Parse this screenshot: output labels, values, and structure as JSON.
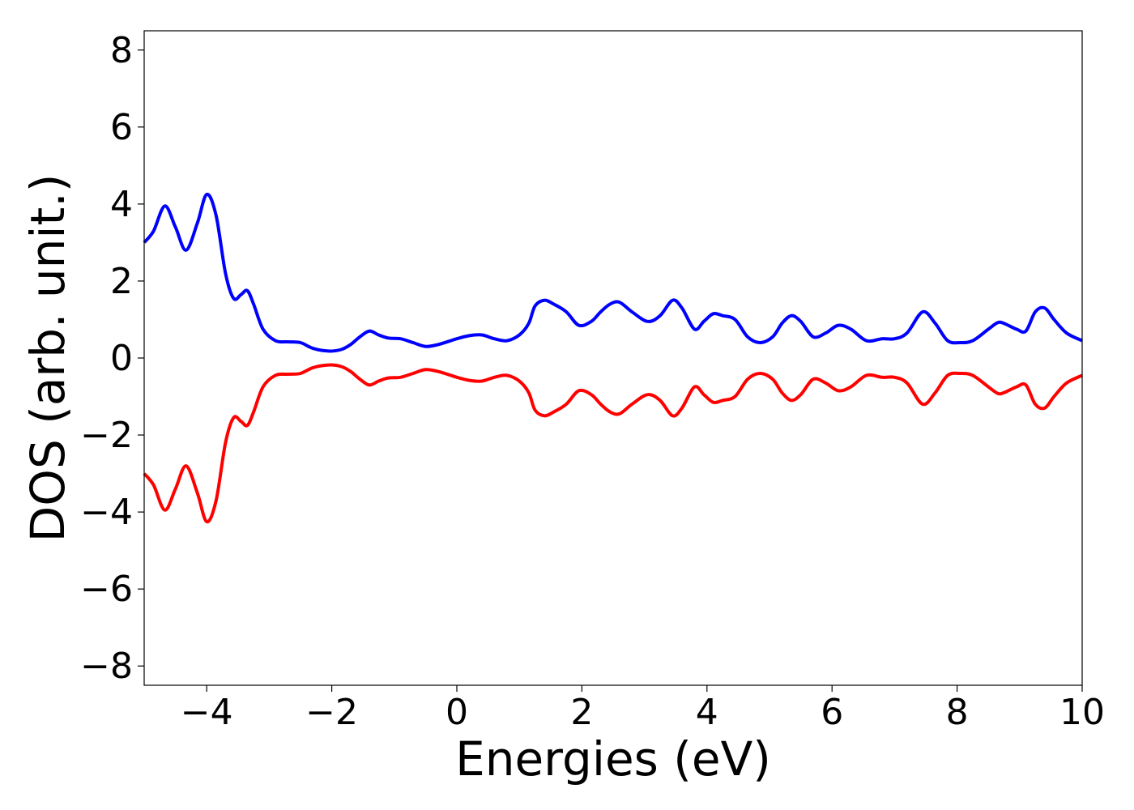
{
  "chart_data": {
    "type": "line",
    "title": "",
    "xlabel": "Energies (eV)",
    "ylabel": "DOS (arb. unit.)",
    "xlim": [
      -5,
      10
    ],
    "ylim": [
      -8.5,
      8.5
    ],
    "xticks": [
      -4,
      -2,
      0,
      2,
      4,
      6,
      8,
      10
    ],
    "yticks": [
      -8,
      -6,
      -4,
      -2,
      0,
      2,
      4,
      6,
      8
    ],
    "xtick_labels": [
      "−4",
      "−2",
      "0",
      "2",
      "4",
      "6",
      "8",
      "10"
    ],
    "ytick_labels": [
      "−8",
      "−6",
      "−4",
      "−2",
      "0",
      "2",
      "4",
      "6",
      "8"
    ],
    "grid": false,
    "legend": "none",
    "series": [
      {
        "color": "#0000ff",
        "x": [
          -5.0,
          -4.85,
          -4.67,
          -4.5,
          -4.33,
          -4.15,
          -4.0,
          -3.85,
          -3.7,
          -3.57,
          -3.45,
          -3.35,
          -3.25,
          -3.1,
          -2.9,
          -2.7,
          -2.5,
          -2.3,
          -2.05,
          -1.85,
          -1.7,
          -1.55,
          -1.4,
          -1.25,
          -1.1,
          -0.9,
          -0.7,
          -0.5,
          -0.3,
          0.0,
          0.2,
          0.4,
          0.6,
          0.8,
          1.0,
          1.15,
          1.25,
          1.4,
          1.55,
          1.75,
          1.95,
          2.15,
          2.3,
          2.45,
          2.6,
          2.8,
          3.05,
          3.25,
          3.45,
          3.6,
          3.8,
          3.95,
          4.1,
          4.25,
          4.45,
          4.65,
          4.85,
          5.05,
          5.2,
          5.35,
          5.5,
          5.7,
          5.9,
          6.1,
          6.3,
          6.55,
          6.8,
          7.0,
          7.2,
          7.45,
          7.65,
          7.85,
          8.05,
          8.25,
          8.5,
          8.65,
          8.75,
          8.95,
          9.1,
          9.25,
          9.4,
          9.55,
          9.75,
          10.0
        ],
        "y": [
          3.0,
          3.3,
          3.95,
          3.4,
          2.8,
          3.5,
          4.25,
          3.7,
          2.2,
          1.55,
          1.65,
          1.75,
          1.4,
          0.75,
          0.45,
          0.42,
          0.4,
          0.25,
          0.18,
          0.22,
          0.35,
          0.55,
          0.7,
          0.6,
          0.52,
          0.5,
          0.4,
          0.3,
          0.35,
          0.5,
          0.58,
          0.6,
          0.5,
          0.45,
          0.6,
          0.9,
          1.35,
          1.5,
          1.4,
          1.2,
          0.85,
          0.95,
          1.2,
          1.4,
          1.45,
          1.2,
          0.95,
          1.1,
          1.5,
          1.3,
          0.75,
          0.95,
          1.15,
          1.1,
          1.0,
          0.55,
          0.4,
          0.55,
          0.9,
          1.1,
          0.95,
          0.55,
          0.65,
          0.85,
          0.75,
          0.45,
          0.5,
          0.5,
          0.65,
          1.2,
          0.9,
          0.45,
          0.4,
          0.45,
          0.75,
          0.92,
          0.9,
          0.75,
          0.7,
          1.2,
          1.3,
          1.0,
          0.65,
          0.45
        ]
      },
      {
        "color": "#ff0000",
        "x": [
          -5.0,
          -4.85,
          -4.67,
          -4.5,
          -4.33,
          -4.15,
          -4.0,
          -3.85,
          -3.7,
          -3.57,
          -3.45,
          -3.35,
          -3.25,
          -3.1,
          -2.9,
          -2.7,
          -2.5,
          -2.3,
          -2.05,
          -1.85,
          -1.7,
          -1.55,
          -1.4,
          -1.25,
          -1.1,
          -0.9,
          -0.7,
          -0.5,
          -0.3,
          0.0,
          0.2,
          0.4,
          0.6,
          0.8,
          1.0,
          1.15,
          1.25,
          1.4,
          1.55,
          1.75,
          1.95,
          2.15,
          2.3,
          2.45,
          2.6,
          2.8,
          3.05,
          3.25,
          3.45,
          3.6,
          3.8,
          3.95,
          4.1,
          4.25,
          4.45,
          4.65,
          4.85,
          5.05,
          5.2,
          5.35,
          5.5,
          5.7,
          5.9,
          6.1,
          6.3,
          6.55,
          6.8,
          7.0,
          7.2,
          7.45,
          7.65,
          7.85,
          8.05,
          8.25,
          8.5,
          8.65,
          8.75,
          8.95,
          9.1,
          9.25,
          9.4,
          9.55,
          9.75,
          10.0
        ],
        "y": [
          -3.0,
          -3.3,
          -3.95,
          -3.4,
          -2.8,
          -3.5,
          -4.25,
          -3.7,
          -2.2,
          -1.55,
          -1.65,
          -1.75,
          -1.4,
          -0.75,
          -0.45,
          -0.42,
          -0.4,
          -0.25,
          -0.18,
          -0.22,
          -0.35,
          -0.55,
          -0.7,
          -0.6,
          -0.52,
          -0.5,
          -0.4,
          -0.3,
          -0.35,
          -0.5,
          -0.58,
          -0.6,
          -0.5,
          -0.45,
          -0.6,
          -0.9,
          -1.35,
          -1.5,
          -1.4,
          -1.2,
          -0.85,
          -0.95,
          -1.2,
          -1.4,
          -1.45,
          -1.2,
          -0.95,
          -1.1,
          -1.5,
          -1.3,
          -0.75,
          -0.95,
          -1.15,
          -1.1,
          -1.0,
          -0.55,
          -0.4,
          -0.55,
          -0.9,
          -1.1,
          -0.95,
          -0.55,
          -0.65,
          -0.85,
          -0.75,
          -0.45,
          -0.5,
          -0.5,
          -0.65,
          -1.2,
          -0.9,
          -0.45,
          -0.4,
          -0.45,
          -0.75,
          -0.92,
          -0.9,
          -0.75,
          -0.7,
          -1.2,
          -1.3,
          -1.0,
          -0.65,
          -0.45
        ]
      }
    ]
  }
}
